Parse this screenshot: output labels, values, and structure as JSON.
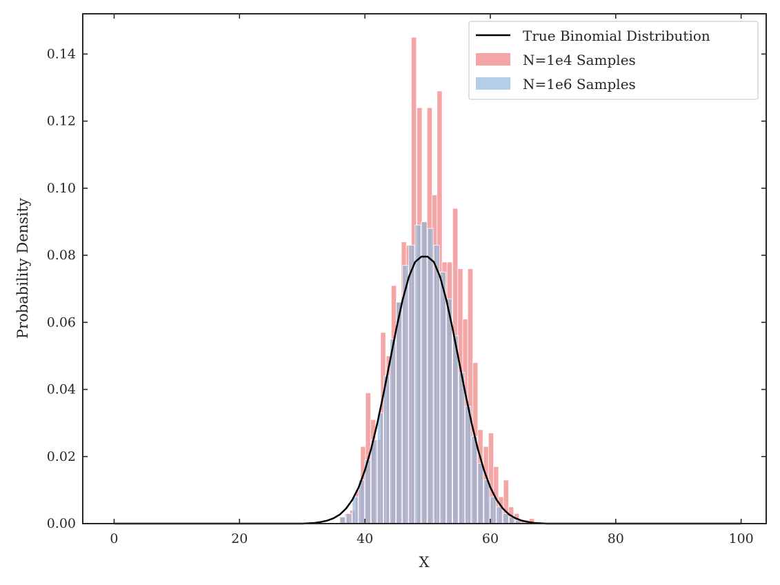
{
  "chart_data": {
    "type": "bar",
    "title": "",
    "xlabel": "X",
    "ylabel": "Probability Density",
    "xlim": [
      -5,
      104
    ],
    "ylim": [
      0,
      0.152
    ],
    "xticks": [
      0,
      20,
      40,
      60,
      80,
      100
    ],
    "xtick_labels": [
      "0",
      "20",
      "40",
      "60",
      "80",
      "100"
    ],
    "yticks": [
      0.0,
      0.02,
      0.04,
      0.06,
      0.08,
      0.1,
      0.12,
      0.14
    ],
    "ytick_labels": [
      "0.00",
      "0.02",
      "0.04",
      "0.06",
      "0.08",
      "0.10",
      "0.12",
      "0.14"
    ],
    "grid": false,
    "legend_position": "top-right",
    "line_series": {
      "name": "True Binomial Distribution",
      "color": "#000000",
      "x": [
        30,
        31,
        32,
        33,
        34,
        35,
        36,
        37,
        38,
        39,
        40,
        41,
        42,
        43,
        44,
        45,
        46,
        47,
        48,
        49,
        50,
        51,
        52,
        53,
        54,
        55,
        56,
        57,
        58,
        59,
        60,
        61,
        62,
        63,
        64,
        65,
        66,
        67,
        68,
        69,
        70
      ],
      "y": [
        0.0,
        0.0001,
        0.0002,
        0.0005,
        0.0009,
        0.0016,
        0.0027,
        0.0045,
        0.0071,
        0.0108,
        0.0159,
        0.0223,
        0.0301,
        0.039,
        0.0485,
        0.058,
        0.0666,
        0.0735,
        0.078,
        0.0796,
        0.0796,
        0.078,
        0.0735,
        0.0666,
        0.058,
        0.0485,
        0.039,
        0.0301,
        0.0223,
        0.0159,
        0.0108,
        0.0071,
        0.0045,
        0.0027,
        0.0016,
        0.0009,
        0.0005,
        0.0002,
        0.0001,
        0.0,
        0.0
      ]
    },
    "series": [
      {
        "name": "N=1e4 Samples",
        "color": "#f08080",
        "opacity": 0.7,
        "bin_width": 0.82,
        "bins": [
          [
            36.0,
            0.002
          ],
          [
            36.8,
            0.003
          ],
          [
            37.6,
            0.004
          ],
          [
            38.5,
            0.01
          ],
          [
            39.3,
            0.023
          ],
          [
            40.1,
            0.039
          ],
          [
            40.9,
            0.031
          ],
          [
            41.7,
            0.025
          ],
          [
            42.5,
            0.057
          ],
          [
            43.4,
            0.05
          ],
          [
            44.2,
            0.071
          ],
          [
            45.0,
            0.066
          ],
          [
            45.8,
            0.084
          ],
          [
            46.6,
            0.083
          ],
          [
            47.4,
            0.145
          ],
          [
            48.3,
            0.124
          ],
          [
            49.1,
            0.09
          ],
          [
            49.9,
            0.124
          ],
          [
            50.7,
            0.098
          ],
          [
            51.5,
            0.129
          ],
          [
            52.3,
            0.078
          ],
          [
            53.1,
            0.078
          ],
          [
            54.0,
            0.094
          ],
          [
            54.8,
            0.076
          ],
          [
            55.6,
            0.061
          ],
          [
            56.4,
            0.076
          ],
          [
            57.2,
            0.048
          ],
          [
            58.0,
            0.028
          ],
          [
            58.9,
            0.023
          ],
          [
            59.7,
            0.027
          ],
          [
            60.5,
            0.017
          ],
          [
            61.3,
            0.008
          ],
          [
            62.1,
            0.013
          ],
          [
            62.9,
            0.005
          ],
          [
            63.8,
            0.003
          ],
          [
            64.6,
            0.001
          ],
          [
            65.4,
            0.001
          ],
          [
            66.2,
            0.0015
          ]
        ]
      },
      {
        "name": "N=1e6 Samples",
        "color": "#8ab4d8",
        "opacity": 0.65,
        "bin_width": 0.9,
        "bins": [
          [
            36.0,
            0.002
          ],
          [
            37.0,
            0.003
          ],
          [
            38.0,
            0.008
          ],
          [
            39.0,
            0.013
          ],
          [
            40.0,
            0.019
          ],
          [
            41.0,
            0.025
          ],
          [
            42.0,
            0.033
          ],
          [
            43.0,
            0.044
          ],
          [
            44.0,
            0.055
          ],
          [
            45.0,
            0.066
          ],
          [
            46.0,
            0.077
          ],
          [
            47.0,
            0.083
          ],
          [
            48.0,
            0.089
          ],
          [
            49.0,
            0.09
          ],
          [
            50.0,
            0.088
          ],
          [
            51.0,
            0.083
          ],
          [
            52.0,
            0.075
          ],
          [
            53.0,
            0.067
          ],
          [
            54.0,
            0.056
          ],
          [
            55.0,
            0.045
          ],
          [
            56.0,
            0.035
          ],
          [
            57.0,
            0.026
          ],
          [
            58.0,
            0.018
          ],
          [
            59.0,
            0.013
          ],
          [
            60.0,
            0.008
          ],
          [
            61.0,
            0.005
          ],
          [
            62.0,
            0.003
          ],
          [
            63.0,
            0.002
          ],
          [
            64.0,
            0.001
          ]
        ]
      }
    ]
  }
}
